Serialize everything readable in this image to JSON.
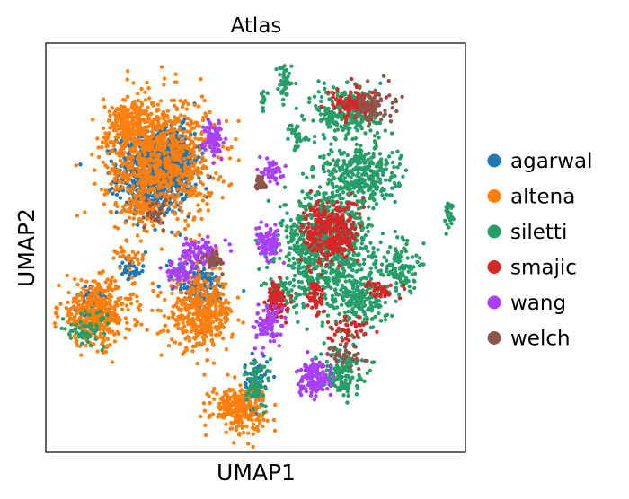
{
  "chart_data": {
    "type": "scatter",
    "title": "Atlas",
    "xlabel": "UMAP1",
    "ylabel": "UMAP2",
    "xlim": [
      0,
      100
    ],
    "ylim": [
      0,
      100
    ],
    "xticks": false,
    "yticks": false,
    "grid": false,
    "legend_position": "right",
    "series": [
      {
        "name": "agarwal",
        "color": "#1f77b4",
        "clusters": [
          {
            "x": 26,
            "y": 68,
            "rx": 8,
            "ry": 9,
            "n": 700
          },
          {
            "x": 30,
            "y": 72,
            "rx": 6,
            "ry": 7,
            "n": 300
          },
          {
            "x": 12,
            "y": 36,
            "rx": 4,
            "ry": 4,
            "n": 90
          },
          {
            "x": 38,
            "y": 40,
            "rx": 4,
            "ry": 4,
            "n": 90
          },
          {
            "x": 50,
            "y": 17,
            "rx": 2.5,
            "ry": 6,
            "n": 70
          },
          {
            "x": 34,
            "y": 44,
            "rx": 4,
            "ry": 3,
            "n": 60
          },
          {
            "x": 20,
            "y": 44,
            "rx": 3,
            "ry": 2,
            "n": 30
          }
        ]
      },
      {
        "name": "altena",
        "color": "#ff7f0e",
        "clusters": [
          {
            "x": 27,
            "y": 72,
            "rx": 12,
            "ry": 14,
            "n": 900
          },
          {
            "x": 20,
            "y": 80,
            "rx": 5,
            "ry": 5,
            "n": 200
          },
          {
            "x": 12,
            "y": 34,
            "rx": 8,
            "ry": 7,
            "n": 420
          },
          {
            "x": 37,
            "y": 34,
            "rx": 7,
            "ry": 8,
            "n": 420
          },
          {
            "x": 46,
            "y": 11,
            "rx": 6,
            "ry": 5,
            "n": 260
          },
          {
            "x": 23,
            "y": 60,
            "rx": 3,
            "ry": 3,
            "n": 70
          },
          {
            "x": 20,
            "y": 48,
            "rx": 3,
            "ry": 2,
            "n": 30
          }
        ]
      },
      {
        "name": "siletti",
        "color": "#279e68",
        "clusters": [
          {
            "x": 67,
            "y": 50,
            "rx": 10,
            "ry": 13,
            "n": 850
          },
          {
            "x": 75,
            "y": 68,
            "rx": 8,
            "ry": 7,
            "n": 320
          },
          {
            "x": 72,
            "y": 83,
            "rx": 7,
            "ry": 6,
            "n": 260
          },
          {
            "x": 84,
            "y": 45,
            "rx": 4,
            "ry": 6,
            "n": 120
          },
          {
            "x": 70,
            "y": 20,
            "rx": 5,
            "ry": 5,
            "n": 150
          },
          {
            "x": 75,
            "y": 37,
            "rx": 5,
            "ry": 5,
            "n": 140
          },
          {
            "x": 56,
            "y": 40,
            "rx": 3,
            "ry": 3,
            "n": 40
          },
          {
            "x": 96,
            "y": 58,
            "rx": 1,
            "ry": 3,
            "n": 30
          },
          {
            "x": 57,
            "y": 91,
            "rx": 1.5,
            "ry": 4,
            "n": 40
          },
          {
            "x": 52,
            "y": 86,
            "rx": 1,
            "ry": 2,
            "n": 15
          },
          {
            "x": 50,
            "y": 17,
            "rx": 3,
            "ry": 6,
            "n": 60
          },
          {
            "x": 10,
            "y": 30,
            "rx": 6,
            "ry": 4,
            "n": 60
          },
          {
            "x": 60,
            "y": 77,
            "rx": 2,
            "ry": 3,
            "n": 30
          }
        ]
      },
      {
        "name": "smajic",
        "color": "#d62728",
        "clusters": [
          {
            "x": 68,
            "y": 54,
            "rx": 6,
            "ry": 7,
            "n": 300
          },
          {
            "x": 74,
            "y": 85,
            "rx": 5,
            "ry": 3,
            "n": 120
          },
          {
            "x": 55,
            "y": 37,
            "rx": 2,
            "ry": 4,
            "n": 90
          },
          {
            "x": 64,
            "y": 38,
            "rx": 2,
            "ry": 4,
            "n": 50
          },
          {
            "x": 80,
            "y": 40,
            "rx": 3,
            "ry": 2,
            "n": 40
          },
          {
            "x": 72,
            "y": 30,
            "rx": 4,
            "ry": 3,
            "n": 40
          }
        ]
      },
      {
        "name": "wang",
        "color": "#aa40fc",
        "clusters": [
          {
            "x": 40,
            "y": 77,
            "rx": 2,
            "ry": 4,
            "n": 90
          },
          {
            "x": 53,
            "y": 51,
            "rx": 2.5,
            "ry": 3,
            "n": 110
          },
          {
            "x": 64,
            "y": 18,
            "rx": 3.5,
            "ry": 4,
            "n": 150
          },
          {
            "x": 53,
            "y": 31,
            "rx": 3,
            "ry": 4,
            "n": 90
          },
          {
            "x": 37,
            "y": 49,
            "rx": 4,
            "ry": 3,
            "n": 100
          },
          {
            "x": 54,
            "y": 69,
            "rx": 2,
            "ry": 3,
            "n": 60
          },
          {
            "x": 32,
            "y": 44,
            "rx": 3,
            "ry": 2,
            "n": 50
          }
        ]
      },
      {
        "name": "welch",
        "color": "#8c564b",
        "clusters": [
          {
            "x": 78,
            "y": 85,
            "rx": 5,
            "ry": 4,
            "n": 80
          },
          {
            "x": 51,
            "y": 66,
            "rx": 1.2,
            "ry": 1.8,
            "n": 30
          },
          {
            "x": 40,
            "y": 47,
            "rx": 2,
            "ry": 2,
            "n": 30
          },
          {
            "x": 72,
            "y": 24,
            "rx": 4,
            "ry": 3,
            "n": 40
          },
          {
            "x": 26,
            "y": 58,
            "rx": 3,
            "ry": 3,
            "n": 30
          }
        ]
      }
    ]
  }
}
